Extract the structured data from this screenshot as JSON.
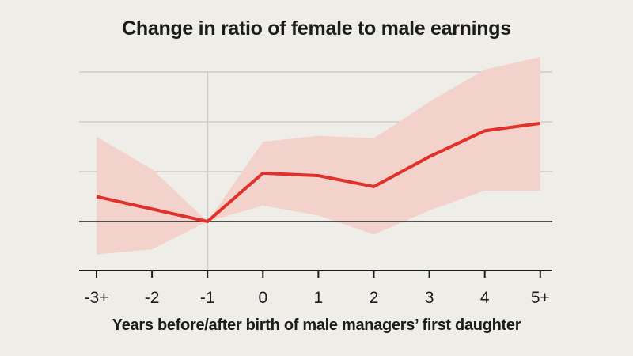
{
  "chart_data": {
    "type": "line",
    "title": "Change in ratio of female to male earnings",
    "xlabel": "Years before/after birth of male managers’ first daughter",
    "ylabel": "",
    "categories": [
      "-3+",
      "-2",
      "-1",
      "0",
      "1",
      "2",
      "3",
      "4",
      "5+"
    ],
    "ylim": [
      -1,
      3
    ],
    "grid": true,
    "series": [
      {
        "values": [
          0.5,
          0.25,
          0,
          0.97,
          0.92,
          0.7,
          1.3,
          1.82,
          1.97
        ],
        "lower": [
          -0.66,
          -0.56,
          0,
          0.32,
          0.12,
          -0.26,
          0.22,
          0.62,
          0.62
        ],
        "upper": [
          1.7,
          1.05,
          0,
          1.6,
          1.72,
          1.67,
          2.4,
          3.05,
          3.3
        ]
      }
    ],
    "reference_line": {
      "y": 0
    },
    "marker_x": "-1",
    "colors": {
      "line": "#e0312a",
      "band": "#f4d2cc",
      "grid": "#cfccc6",
      "zero_line": "#1c1c1c",
      "background": "#efede8",
      "text": "#1c1c1c"
    }
  }
}
